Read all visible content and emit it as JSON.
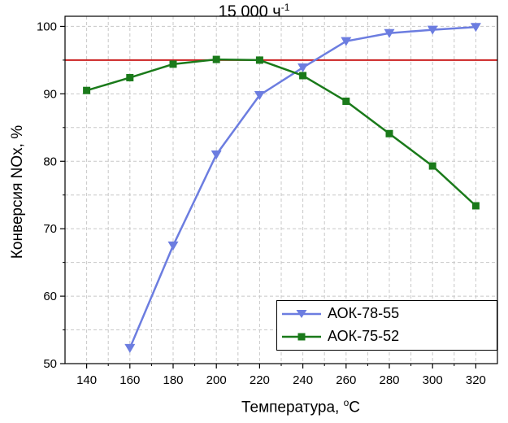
{
  "chart_data": {
    "type": "line",
    "title": "15 000 ч",
    "title_sup": "-1",
    "xlabel": "Температура, ",
    "xlabel_sup": "o",
    "xlabel_unit": "C",
    "ylabel": "Конверсия NOx, %",
    "xlim": [
      130,
      330
    ],
    "ylim": [
      50,
      101.5
    ],
    "x_ticks": [
      140,
      160,
      180,
      200,
      220,
      240,
      260,
      280,
      300,
      320
    ],
    "y_ticks": [
      50,
      60,
      70,
      80,
      90,
      100
    ],
    "grid": true,
    "reference_line": {
      "y": 95,
      "color": "#cc2020"
    },
    "legend_position": "bottom-right",
    "series": [
      {
        "name": "АОК-78-55",
        "color": "#6c7de0",
        "marker": "triangle-down",
        "x": [
          160,
          180,
          200,
          220,
          240,
          260,
          280,
          300,
          320
        ],
        "values": [
          52.3,
          67.5,
          81.0,
          89.8,
          93.9,
          97.8,
          99.0,
          99.5,
          99.9
        ]
      },
      {
        "name": "АОК-75-52",
        "color": "#1a7a1a",
        "marker": "square",
        "x": [
          140,
          160,
          180,
          200,
          220,
          240,
          260,
          280,
          300,
          320
        ],
        "values": [
          90.5,
          92.4,
          94.4,
          95.1,
          95.0,
          92.7,
          88.9,
          84.1,
          79.3,
          73.4
        ]
      }
    ]
  }
}
